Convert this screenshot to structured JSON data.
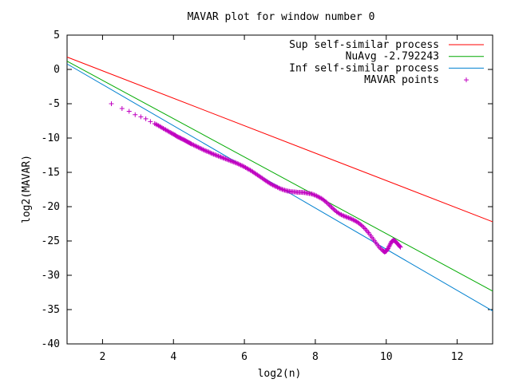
{
  "chart_data": {
    "type": "line",
    "title": "MAVAR plot for window number 0",
    "xlabel": "log2(n)",
    "ylabel": "log2(MAVAR)",
    "xlim": [
      1,
      13
    ],
    "ylim": [
      -40,
      5
    ],
    "x_ticks": [
      2,
      4,
      6,
      8,
      10,
      12
    ],
    "y_ticks": [
      5,
      0,
      -5,
      -10,
      -15,
      -20,
      -25,
      -30,
      -35,
      -40
    ],
    "grid": false,
    "legend_position": "top-right",
    "series": [
      {
        "name": "Sup self-similar process",
        "kind": "line",
        "color": "#ff0000",
        "x": [
          1,
          13
        ],
        "y": [
          1.8,
          -22.2
        ]
      },
      {
        "name": "NuAvg -2.792243",
        "kind": "line",
        "color": "#00aa00",
        "x": [
          1,
          13
        ],
        "y": [
          1.2,
          -32.3
        ]
      },
      {
        "name": "Inf self-similar process",
        "kind": "line",
        "color": "#0080d0",
        "x": [
          1,
          13
        ],
        "y": [
          0.8,
          -35.2
        ]
      },
      {
        "name": "MAVAR points",
        "kind": "points",
        "marker": "+",
        "color": "#c000c0",
        "x": [
          2.25,
          2.55,
          2.75,
          2.92,
          3.08,
          3.22,
          3.35,
          3.47,
          3.58,
          3.68,
          3.78,
          3.88,
          3.97,
          4.05,
          4.13,
          4.21,
          4.29,
          4.36,
          4.43,
          4.5,
          4.6,
          4.7,
          4.8,
          4.9,
          5.0,
          5.1,
          5.2,
          5.3,
          5.4,
          5.5,
          5.6,
          5.7,
          5.8,
          5.9,
          6.0,
          6.1,
          6.2,
          6.3,
          6.4,
          6.5,
          6.6,
          6.7,
          6.8,
          6.9,
          7.0,
          7.1,
          7.2,
          7.3,
          7.4,
          7.5,
          7.6,
          7.7,
          7.8,
          7.9,
          8.0,
          8.1,
          8.2,
          8.3,
          8.4,
          8.5,
          8.6,
          8.7,
          8.8,
          8.9,
          9.0,
          9.1,
          9.2,
          9.3,
          9.4,
          9.5,
          9.6,
          9.7,
          9.8,
          9.9,
          9.95,
          10.0,
          10.05,
          10.1,
          10.15,
          10.2,
          10.25,
          10.3,
          10.35,
          10.4
        ],
        "y": [
          -5.0,
          -5.7,
          -6.1,
          -6.6,
          -6.9,
          -7.2,
          -7.6,
          -7.9,
          -8.2,
          -8.5,
          -8.8,
          -9.1,
          -9.35,
          -9.6,
          -9.85,
          -10.05,
          -10.25,
          -10.45,
          -10.65,
          -10.85,
          -11.1,
          -11.35,
          -11.6,
          -11.85,
          -12.05,
          -12.3,
          -12.5,
          -12.7,
          -12.9,
          -13.1,
          -13.3,
          -13.5,
          -13.7,
          -13.95,
          -14.2,
          -14.5,
          -14.8,
          -15.15,
          -15.5,
          -15.85,
          -16.2,
          -16.55,
          -16.85,
          -17.1,
          -17.35,
          -17.55,
          -17.7,
          -17.8,
          -17.85,
          -17.9,
          -17.9,
          -17.95,
          -18.05,
          -18.15,
          -18.35,
          -18.6,
          -18.9,
          -19.3,
          -19.8,
          -20.3,
          -20.75,
          -21.1,
          -21.35,
          -21.55,
          -21.75,
          -22.0,
          -22.3,
          -22.7,
          -23.2,
          -23.8,
          -24.5,
          -25.2,
          -25.9,
          -26.4,
          -26.6,
          -26.5,
          -26.1,
          -25.6,
          -25.1,
          -24.9,
          -25.0,
          -25.3,
          -25.6,
          -25.9
        ]
      }
    ]
  }
}
